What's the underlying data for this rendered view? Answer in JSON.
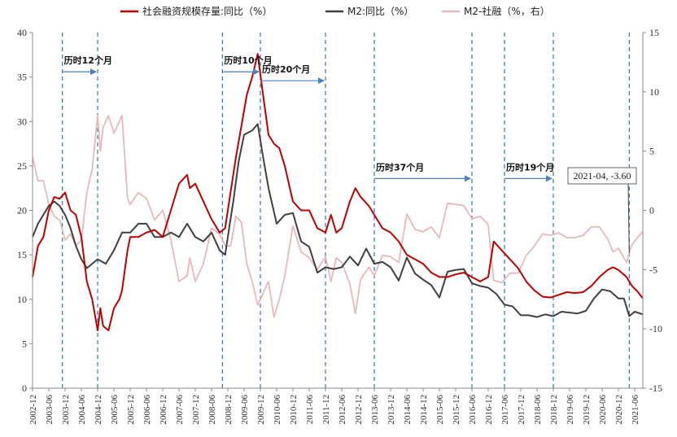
{
  "chart_data": {
    "type": "line",
    "title": "",
    "xlabel": "",
    "ylabel": "",
    "ylim_left": [
      0,
      40
    ],
    "ylim_right": [
      -15,
      15
    ],
    "yticks_left": [
      "0",
      "5",
      "10",
      "15",
      "20",
      "25",
      "30",
      "35",
      "40"
    ],
    "yticks_right": [
      "-15",
      "-10",
      "-5",
      "0",
      "5",
      "10",
      "15"
    ],
    "x_range": [
      "2002-12",
      "2021-09"
    ],
    "x_ticks": [
      "2002-12",
      "2003-06",
      "2003-12",
      "2004-06",
      "2004-12",
      "2005-06",
      "2005-12",
      "2006-06",
      "2006-12",
      "2007-06",
      "2007-12",
      "2008-06",
      "2008-12",
      "2009-06",
      "2009-12",
      "2010-06",
      "2010-12",
      "2011-06",
      "2011-12",
      "2012-06",
      "2012-12",
      "2013-06",
      "2013-12",
      "2014-06",
      "2014-12",
      "2015-06",
      "2015-12",
      "2016-06",
      "2016-12",
      "2017-06",
      "2017-12",
      "2018-06",
      "2018-12",
      "2019-06",
      "2019-12",
      "2020-06",
      "2020-12",
      "2021-06"
    ],
    "legend_position": "top",
    "grid": false,
    "series": [
      {
        "name": "社会融资规模存量:同比（%）",
        "color": "#c00000",
        "axis": "left",
        "points": [
          [
            "2002-12",
            12.5
          ],
          [
            "2003-02",
            16
          ],
          [
            "2003-04",
            17
          ],
          [
            "2003-06",
            20
          ],
          [
            "2003-08",
            21.5
          ],
          [
            "2003-10",
            21.3
          ],
          [
            "2003-12",
            22
          ],
          [
            "2004-02",
            20
          ],
          [
            "2004-04",
            19.5
          ],
          [
            "2004-06",
            17
          ],
          [
            "2004-08",
            12
          ],
          [
            "2004-10",
            10
          ],
          [
            "2004-12",
            6.5
          ],
          [
            "2005-01",
            9
          ],
          [
            "2005-02",
            7
          ],
          [
            "2005-04",
            6.5
          ],
          [
            "2005-06",
            9
          ],
          [
            "2005-08",
            10
          ],
          [
            "2005-09",
            11
          ],
          [
            "2005-11",
            15.5
          ],
          [
            "2005-12",
            17
          ],
          [
            "2006-03",
            17
          ],
          [
            "2006-06",
            17.5
          ],
          [
            "2006-09",
            17.8
          ],
          [
            "2006-12",
            17
          ],
          [
            "2007-03",
            20
          ],
          [
            "2007-06",
            23
          ],
          [
            "2007-09",
            24
          ],
          [
            "2007-10",
            22.5
          ],
          [
            "2007-12",
            23
          ],
          [
            "2008-03",
            21
          ],
          [
            "2008-06",
            19
          ],
          [
            "2008-09",
            17.5
          ],
          [
            "2008-11",
            18
          ],
          [
            "2009-01",
            22
          ],
          [
            "2009-03",
            26
          ],
          [
            "2009-05",
            29.5
          ],
          [
            "2009-07",
            33
          ],
          [
            "2009-09",
            35
          ],
          [
            "2009-11",
            37.6
          ],
          [
            "2010-01",
            33
          ],
          [
            "2010-03",
            28.5
          ],
          [
            "2010-05",
            27.5
          ],
          [
            "2010-07",
            27
          ],
          [
            "2010-09",
            25
          ],
          [
            "2010-12",
            21
          ],
          [
            "2011-03",
            20
          ],
          [
            "2011-06",
            20
          ],
          [
            "2011-09",
            18
          ],
          [
            "2011-12",
            17.5
          ],
          [
            "2012-02",
            19.5
          ],
          [
            "2012-04",
            17.5
          ],
          [
            "2012-06",
            18
          ],
          [
            "2012-09",
            21
          ],
          [
            "2012-11",
            22.5
          ],
          [
            "2013-01",
            21.5
          ],
          [
            "2013-04",
            20.5
          ],
          [
            "2013-06",
            19.5
          ],
          [
            "2013-09",
            18
          ],
          [
            "2013-12",
            17.5
          ],
          [
            "2014-03",
            16.5
          ],
          [
            "2014-06",
            15
          ],
          [
            "2014-09",
            14.5
          ],
          [
            "2014-12",
            14
          ],
          [
            "2015-03",
            13
          ],
          [
            "2015-06",
            12.5
          ],
          [
            "2015-09",
            12.5
          ],
          [
            "2015-12",
            12.8
          ],
          [
            "2016-03",
            13
          ],
          [
            "2016-06",
            12.5
          ],
          [
            "2016-09",
            12
          ],
          [
            "2016-12",
            12.5
          ],
          [
            "2017-02",
            16.5
          ],
          [
            "2017-05",
            15.5
          ],
          [
            "2017-08",
            14.5
          ],
          [
            "2017-11",
            13.5
          ],
          [
            "2018-02",
            12
          ],
          [
            "2018-05",
            11
          ],
          [
            "2018-08",
            10.3
          ],
          [
            "2018-11",
            10.2
          ],
          [
            "2019-02",
            10.5
          ],
          [
            "2019-05",
            10.8
          ],
          [
            "2019-08",
            10.7
          ],
          [
            "2019-11",
            10.8
          ],
          [
            "2020-02",
            11.5
          ],
          [
            "2020-05",
            12.5
          ],
          [
            "2020-08",
            13.3
          ],
          [
            "2020-10",
            13.6
          ],
          [
            "2020-12",
            13.3
          ],
          [
            "2021-03",
            12.5
          ],
          [
            "2021-05",
            11.5
          ],
          [
            "2021-07",
            10.9
          ],
          [
            "2021-09",
            10.1
          ]
        ]
      },
      {
        "name": "M2:同比（%）",
        "color": "#404040",
        "axis": "left",
        "points": [
          [
            "2002-12",
            17
          ],
          [
            "2003-02",
            18.5
          ],
          [
            "2003-04",
            19.5
          ],
          [
            "2003-06",
            20.5
          ],
          [
            "2003-08",
            21
          ],
          [
            "2003-10",
            20.5
          ],
          [
            "2003-12",
            19.5
          ],
          [
            "2004-02",
            18
          ],
          [
            "2004-04",
            16
          ],
          [
            "2004-06",
            14.5
          ],
          [
            "2004-08",
            13.5
          ],
          [
            "2004-10",
            14
          ],
          [
            "2004-12",
            14.5
          ],
          [
            "2005-03",
            14
          ],
          [
            "2005-06",
            15.5
          ],
          [
            "2005-09",
            17.5
          ],
          [
            "2005-12",
            17.5
          ],
          [
            "2006-03",
            18.5
          ],
          [
            "2006-06",
            18.5
          ],
          [
            "2006-09",
            17
          ],
          [
            "2006-12",
            17
          ],
          [
            "2007-03",
            17.5
          ],
          [
            "2007-06",
            17
          ],
          [
            "2007-09",
            18.5
          ],
          [
            "2007-12",
            17
          ],
          [
            "2008-03",
            16.5
          ],
          [
            "2008-06",
            17.5
          ],
          [
            "2008-09",
            15.5
          ],
          [
            "2008-11",
            15
          ],
          [
            "2009-01",
            19
          ],
          [
            "2009-02",
            21
          ],
          [
            "2009-04",
            25.5
          ],
          [
            "2009-06",
            28.5
          ],
          [
            "2009-09",
            29
          ],
          [
            "2009-11",
            29.7
          ],
          [
            "2010-01",
            26
          ],
          [
            "2010-03",
            22.5
          ],
          [
            "2010-06",
            18.5
          ],
          [
            "2010-09",
            19.5
          ],
          [
            "2010-12",
            19.7
          ],
          [
            "2011-03",
            16.5
          ],
          [
            "2011-06",
            15.9
          ],
          [
            "2011-09",
            13
          ],
          [
            "2011-12",
            13.6
          ],
          [
            "2012-03",
            13.4
          ],
          [
            "2012-06",
            13.6
          ],
          [
            "2012-09",
            14.8
          ],
          [
            "2012-12",
            13.8
          ],
          [
            "2013-03",
            15.7
          ],
          [
            "2013-06",
            14
          ],
          [
            "2013-09",
            14.2
          ],
          [
            "2013-12",
            13.6
          ],
          [
            "2014-03",
            12.1
          ],
          [
            "2014-06",
            14.7
          ],
          [
            "2014-09",
            12.9
          ],
          [
            "2014-12",
            12.2
          ],
          [
            "2015-03",
            11.6
          ],
          [
            "2015-06",
            10.2
          ],
          [
            "2015-09",
            13.1
          ],
          [
            "2015-12",
            13.3
          ],
          [
            "2016-03",
            13.4
          ],
          [
            "2016-06",
            11.8
          ],
          [
            "2016-09",
            11.5
          ],
          [
            "2016-12",
            11.3
          ],
          [
            "2017-03",
            10.6
          ],
          [
            "2017-06",
            9.4
          ],
          [
            "2017-09",
            9.2
          ],
          [
            "2017-12",
            8.2
          ],
          [
            "2018-03",
            8.2
          ],
          [
            "2018-06",
            8
          ],
          [
            "2018-09",
            8.3
          ],
          [
            "2018-12",
            8.1
          ],
          [
            "2019-03",
            8.6
          ],
          [
            "2019-06",
            8.5
          ],
          [
            "2019-09",
            8.4
          ],
          [
            "2019-12",
            8.7
          ],
          [
            "2020-03",
            10.1
          ],
          [
            "2020-06",
            11.1
          ],
          [
            "2020-09",
            10.9
          ],
          [
            "2020-12",
            10.1
          ],
          [
            "2021-02",
            10.1
          ],
          [
            "2021-04",
            8.1
          ],
          [
            "2021-06",
            8.6
          ],
          [
            "2021-09",
            8.3
          ]
        ]
      },
      {
        "name": "M2-社融（%，右）",
        "color": "#e9b8b8",
        "axis": "right",
        "points": [
          [
            "2002-12",
            4.5
          ],
          [
            "2003-02",
            2.5
          ],
          [
            "2003-04",
            2.5
          ],
          [
            "2003-06",
            0.5
          ],
          [
            "2003-08",
            -0.5
          ],
          [
            "2003-10",
            -0.8
          ],
          [
            "2003-12",
            -2.5
          ],
          [
            "2004-02",
            -2
          ],
          [
            "2004-04",
            -3
          ],
          [
            "2004-06",
            -2.5
          ],
          [
            "2004-08",
            1.5
          ],
          [
            "2004-10",
            3.5
          ],
          [
            "2004-12",
            8
          ],
          [
            "2005-01",
            5
          ],
          [
            "2005-02",
            7
          ],
          [
            "2005-04",
            8
          ],
          [
            "2005-06",
            6.5
          ],
          [
            "2005-08",
            7.5
          ],
          [
            "2005-09",
            8
          ],
          [
            "2005-11",
            1
          ],
          [
            "2005-12",
            0.5
          ],
          [
            "2006-03",
            1.5
          ],
          [
            "2006-06",
            1
          ],
          [
            "2006-09",
            -0.8
          ],
          [
            "2006-12",
            0
          ],
          [
            "2007-03",
            -2.5
          ],
          [
            "2007-06",
            -6
          ],
          [
            "2007-09",
            -5.5
          ],
          [
            "2007-10",
            -4
          ],
          [
            "2007-12",
            -6
          ],
          [
            "2008-03",
            -4.5
          ],
          [
            "2008-06",
            -1.5
          ],
          [
            "2008-09",
            -2
          ],
          [
            "2008-11",
            -3
          ],
          [
            "2009-01",
            -3
          ],
          [
            "2009-03",
            -0.5
          ],
          [
            "2009-05",
            -1
          ],
          [
            "2009-07",
            -4.5
          ],
          [
            "2009-09",
            -6
          ],
          [
            "2009-11",
            -8
          ],
          [
            "2010-01",
            -7
          ],
          [
            "2010-03",
            -6
          ],
          [
            "2010-05",
            -9
          ],
          [
            "2010-07",
            -7.5
          ],
          [
            "2010-09",
            -5.5
          ],
          [
            "2010-12",
            -1.3
          ],
          [
            "2011-03",
            -3.5
          ],
          [
            "2011-06",
            -4
          ],
          [
            "2011-09",
            -5
          ],
          [
            "2011-12",
            -3.9
          ],
          [
            "2012-02",
            -6
          ],
          [
            "2012-04",
            -4
          ],
          [
            "2012-06",
            -4.4
          ],
          [
            "2012-09",
            -6.2
          ],
          [
            "2012-11",
            -8.7
          ],
          [
            "2013-01",
            -5.8
          ],
          [
            "2013-04",
            -4.8
          ],
          [
            "2013-06",
            -5.5
          ],
          [
            "2013-09",
            -3.8
          ],
          [
            "2013-12",
            -3.9
          ],
          [
            "2014-03",
            -4.4
          ],
          [
            "2014-06",
            -0.3
          ],
          [
            "2014-09",
            -1.6
          ],
          [
            "2014-12",
            -1.8
          ],
          [
            "2015-03",
            -1.4
          ],
          [
            "2015-06",
            -2.3
          ],
          [
            "2015-09",
            0.6
          ],
          [
            "2015-12",
            0.5
          ],
          [
            "2016-03",
            0.4
          ],
          [
            "2016-06",
            -0.7
          ],
          [
            "2016-09",
            -0.5
          ],
          [
            "2016-12",
            -1.2
          ],
          [
            "2017-02",
            -5.9
          ],
          [
            "2017-05",
            -6.1
          ],
          [
            "2017-08",
            -5.3
          ],
          [
            "2017-11",
            -5.3
          ],
          [
            "2018-02",
            -3.8
          ],
          [
            "2018-05",
            -3
          ],
          [
            "2018-08",
            -2
          ],
          [
            "2018-11",
            -2.1
          ],
          [
            "2019-02",
            -1.9
          ],
          [
            "2019-05",
            -2.3
          ],
          [
            "2019-08",
            -2.3
          ],
          [
            "2019-11",
            -2.1
          ],
          [
            "2020-02",
            -1.4
          ],
          [
            "2020-05",
            -1.4
          ],
          [
            "2020-08",
            -2.4
          ],
          [
            "2020-10",
            -3.5
          ],
          [
            "2020-12",
            -3.2
          ],
          [
            "2021-03",
            -4.4
          ],
          [
            "2021-04",
            -3.6
          ],
          [
            "2021-05",
            -2.9
          ],
          [
            "2021-07",
            -2.3
          ],
          [
            "2021-09",
            -1.8
          ]
        ]
      }
    ],
    "vlines": [
      "2003-11",
      "2004-12",
      "2008-10",
      "2009-12",
      "2011-12",
      "2013-06",
      "2016-06",
      "2017-06",
      "2018-12",
      "2021-04"
    ],
    "annotations": [
      {
        "text": "历时12个月",
        "from": "2003-11",
        "to": "2004-12",
        "y_left": 36.5
      },
      {
        "text": "历时10个月",
        "from": "2008-10",
        "to": "2009-12",
        "y_left": 36.5
      },
      {
        "text": "历时20个月",
        "from": "2009-12",
        "to": "2011-12",
        "y_left": 35.5
      },
      {
        "text": "历时37个月",
        "from": "2013-06",
        "to": "2016-06",
        "y_left": 24.5
      },
      {
        "text": "历时19个月",
        "from": "2017-06",
        "to": "2018-12",
        "y_left": 24.5
      }
    ],
    "callout": {
      "text": "2021-04, -3.60",
      "x": "2021-04",
      "y_right": -3.6
    }
  }
}
